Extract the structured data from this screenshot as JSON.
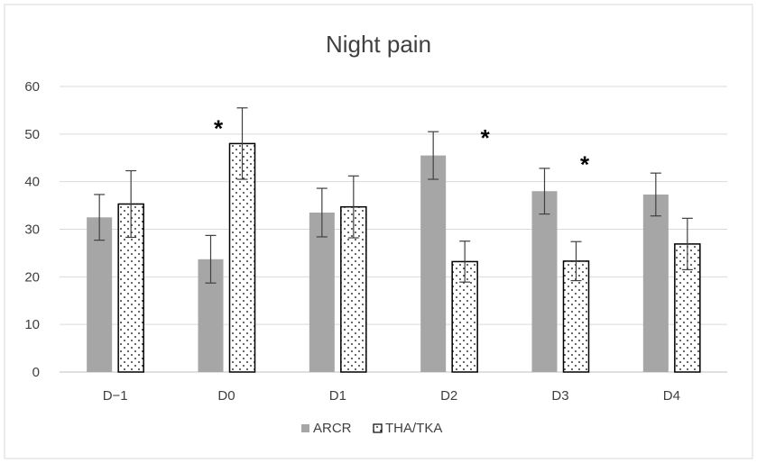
{
  "chart_data": {
    "type": "bar",
    "title": "Night pain",
    "xlabel": "",
    "ylabel": "",
    "categories": [
      "D−1",
      "D0",
      "D1",
      "D2",
      "D3",
      "D4"
    ],
    "ylim": [
      0,
      60
    ],
    "yticks": [
      0,
      10,
      20,
      30,
      40,
      50,
      60
    ],
    "grid": true,
    "legend_position": "bottom",
    "series": [
      {
        "name": "ARCR",
        "values": [
          32.5,
          23.7,
          33.5,
          45.5,
          38.0,
          37.3
        ],
        "error": [
          4.8,
          5.0,
          5.1,
          5.0,
          4.8,
          4.5
        ],
        "fill": "#a6a6a6",
        "pattern": "solid"
      },
      {
        "name": "THA/TKA",
        "values": [
          35.3,
          48.0,
          34.7,
          23.2,
          23.3,
          26.9
        ],
        "error": [
          7.0,
          7.5,
          6.5,
          4.3,
          4.1,
          5.4
        ],
        "fill": "#ffffff",
        "pattern": "dotted"
      }
    ],
    "significance": [
      {
        "category": "D0",
        "label": "*",
        "y": 52.5
      },
      {
        "category": "D2",
        "label": "*",
        "y": 50.5
      },
      {
        "category": "D3",
        "label": "*",
        "y": 45.0
      }
    ]
  }
}
